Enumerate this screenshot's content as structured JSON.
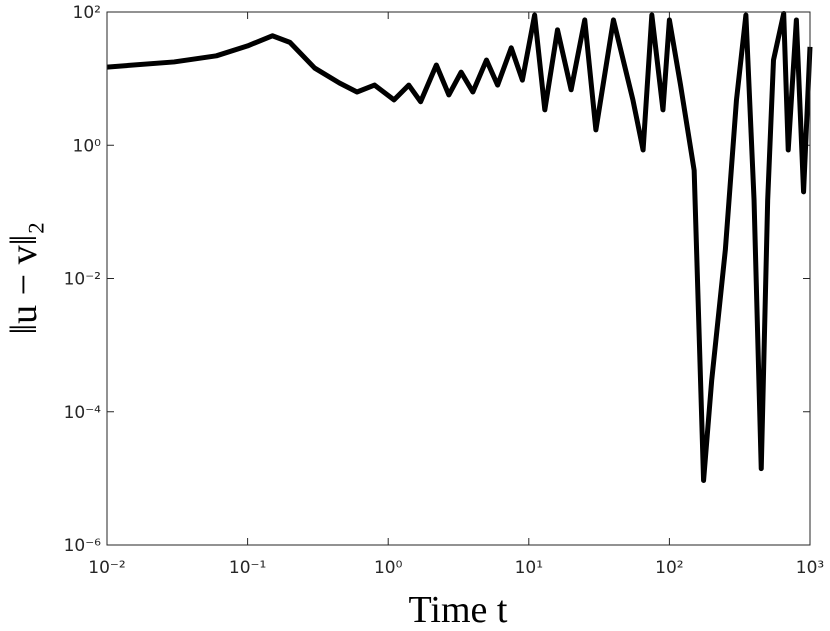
{
  "chart_data": {
    "type": "line",
    "x_label": "Time t",
    "y_label": "‖u − v‖₂",
    "xscale": "log",
    "yscale": "log",
    "xlim": [
      0.01,
      1000
    ],
    "ylim": [
      1e-06,
      100
    ],
    "xticks": [
      {
        "value": 0.01,
        "label": "10⁻²"
      },
      {
        "value": 0.1,
        "label": "10⁻¹"
      },
      {
        "value": 1,
        "label": "10⁰"
      },
      {
        "value": 10,
        "label": "10¹"
      },
      {
        "value": 100,
        "label": "10²"
      },
      {
        "value": 1000,
        "label": "10³"
      }
    ],
    "yticks": [
      {
        "value": 1e-06,
        "label": "10⁻⁶"
      },
      {
        "value": 0.0001,
        "label": "10⁻⁴"
      },
      {
        "value": 0.01,
        "label": "10⁻²"
      },
      {
        "value": 1,
        "label": "10⁰"
      },
      {
        "value": 100,
        "label": "10²"
      }
    ],
    "series": [
      {
        "color": "#000000",
        "x": [
          0.01,
          0.03,
          0.06,
          0.1,
          0.15,
          0.2,
          0.3,
          0.45,
          0.6,
          0.8,
          1.1,
          1.4,
          1.7,
          2.2,
          2.7,
          3.3,
          4,
          5,
          6,
          7.5,
          9,
          11,
          13,
          16,
          20,
          25,
          30,
          40,
          55,
          65,
          75,
          90,
          100,
          120,
          150,
          175,
          200,
          250,
          300,
          350,
          400,
          450,
          500,
          550,
          650,
          700,
          800,
          900,
          1000
        ],
        "values": [
          14.9,
          17.8,
          22,
          31,
          44,
          35,
          14.4,
          8.6,
          6.3,
          8,
          4.8,
          8,
          4.5,
          16,
          5.7,
          12.5,
          6.3,
          19,
          8,
          29,
          9.5,
          90,
          3.4,
          54,
          6.8,
          76,
          1.7,
          76,
          4.8,
          0.85,
          90,
          3.4,
          76,
          8,
          0.42,
          9.3e-06,
          0.0003,
          0.027,
          4.8,
          90,
          0.15,
          1.4e-05,
          0.15,
          19,
          95,
          0.85,
          76,
          0.2,
          30
        ]
      }
    ]
  }
}
